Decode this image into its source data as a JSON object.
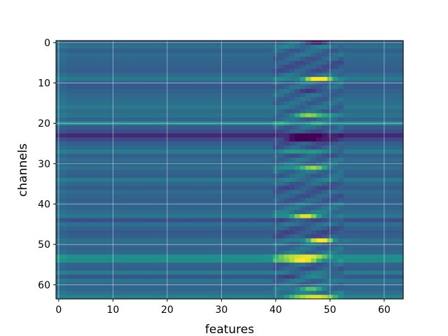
{
  "chart_data": {
    "type": "heatmap",
    "colormap": "viridis",
    "xlabel": "features",
    "ylabel": "channels",
    "x_range": [
      0,
      63
    ],
    "y_range": [
      0,
      63
    ],
    "y_inverted": true,
    "grid": true,
    "x_ticks": [
      0,
      10,
      20,
      30,
      40,
      50,
      60
    ],
    "y_ticks": [
      0,
      10,
      20,
      30,
      40,
      50,
      60
    ],
    "x_tick_labels": [
      "0",
      "10",
      "20",
      "30",
      "40",
      "50",
      "60"
    ],
    "y_tick_labels": [
      "0",
      "10",
      "20",
      "30",
      "40",
      "50",
      "60"
    ],
    "n_rows": 64,
    "n_cols": 64,
    "row_base": [
      0.4,
      0.46,
      0.38,
      0.44,
      0.42,
      0.4,
      0.39,
      0.37,
      0.44,
      0.5,
      0.38,
      0.36,
      0.4,
      0.42,
      0.44,
      0.46,
      0.5,
      0.44,
      0.48,
      0.4,
      0.58,
      0.36,
      0.3,
      0.14,
      0.28,
      0.38,
      0.42,
      0.52,
      0.38,
      0.44,
      0.4,
      0.46,
      0.4,
      0.38,
      0.5,
      0.42,
      0.36,
      0.44,
      0.4,
      0.38,
      0.42,
      0.4,
      0.44,
      0.48,
      0.3,
      0.46,
      0.4,
      0.36,
      0.38,
      0.46,
      0.42,
      0.4,
      0.42,
      0.62,
      0.6,
      0.4,
      0.38,
      0.52,
      0.34,
      0.48,
      0.42,
      0.4,
      0.46,
      0.54
    ],
    "hot_rows": [
      {
        "row": 9,
        "center": 48,
        "amp": 0.5
      },
      {
        "row": 18,
        "center": 47,
        "amp": 0.42
      },
      {
        "row": 23,
        "center": 46,
        "amp": -0.4
      },
      {
        "row": 24,
        "center": 46,
        "amp": -0.38
      },
      {
        "row": 31,
        "center": 46,
        "amp": 0.35
      },
      {
        "row": 43,
        "center": 45,
        "amp": 0.4
      },
      {
        "row": 49,
        "center": 48,
        "amp": 0.55
      },
      {
        "row": 53,
        "center": 45,
        "amp": 0.38
      },
      {
        "row": 54,
        "center": 44,
        "amp": 0.4
      },
      {
        "row": 58,
        "center": 48,
        "amp": 0.3
      },
      {
        "row": 61,
        "center": 46,
        "amp": 0.32
      },
      {
        "row": 63,
        "center": 47,
        "amp": 0.45
      },
      {
        "row": 0,
        "center": 48,
        "amp": -0.3
      },
      {
        "row": 12,
        "center": 47,
        "amp": -0.2
      },
      {
        "row": 27,
        "center": 45,
        "amp": 0.25
      }
    ]
  }
}
